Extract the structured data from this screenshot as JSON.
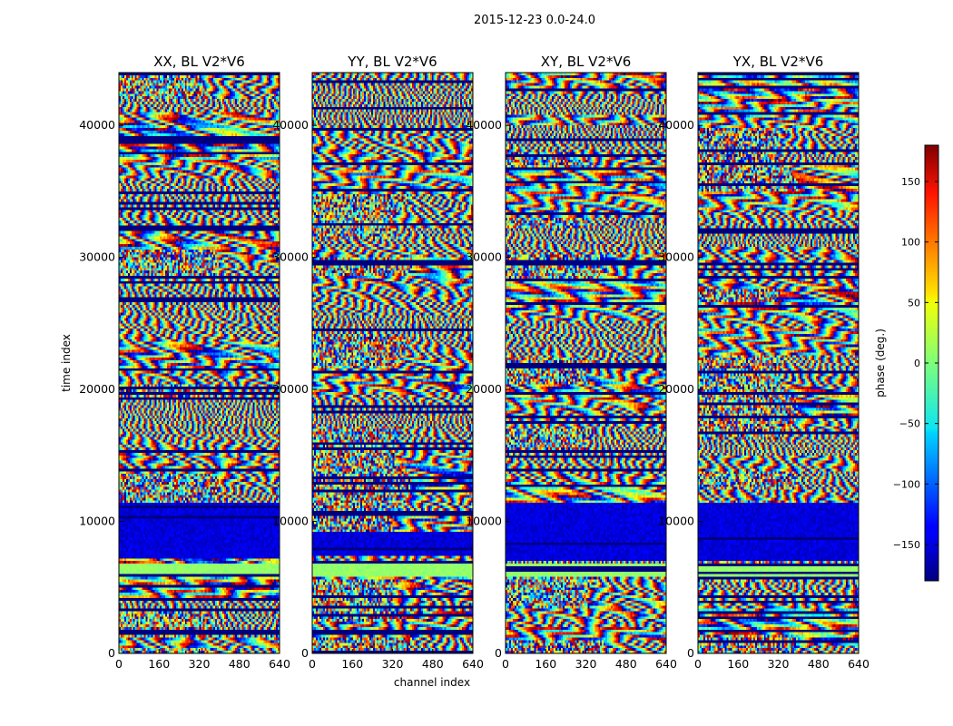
{
  "chart_data": {
    "type": "heatmap",
    "suptitle": "2015-12-23 0.0-24.0",
    "xlabel": "channel index",
    "ylabel": "time index",
    "xlim": [
      0,
      640
    ],
    "ylim": [
      0,
      44000
    ],
    "xticks": [
      0,
      160,
      320,
      480,
      640
    ],
    "xtick_labels": [
      "0",
      "160",
      "320",
      "480",
      "640"
    ],
    "yticks": [
      0,
      10000,
      20000,
      30000,
      40000
    ],
    "ytick_labels": [
      "0",
      "10000",
      "20000",
      "30000",
      "40000"
    ],
    "panels": [
      {
        "title": "XX, BL V2*V6"
      },
      {
        "title": "YY, BL V2*V6"
      },
      {
        "title": "XY, BL V2*V6"
      },
      {
        "title": "YX, BL V2*V6"
      }
    ],
    "colorbar": {
      "label": "phase (deg.)",
      "range": [
        -180,
        180
      ],
      "colormap": "jet",
      "ticks": [
        -150,
        -100,
        -50,
        0,
        50,
        100,
        150
      ],
      "tick_labels": [
        "−150",
        "−100",
        "−50",
        "0",
        "50",
        "100",
        "150"
      ]
    }
  }
}
